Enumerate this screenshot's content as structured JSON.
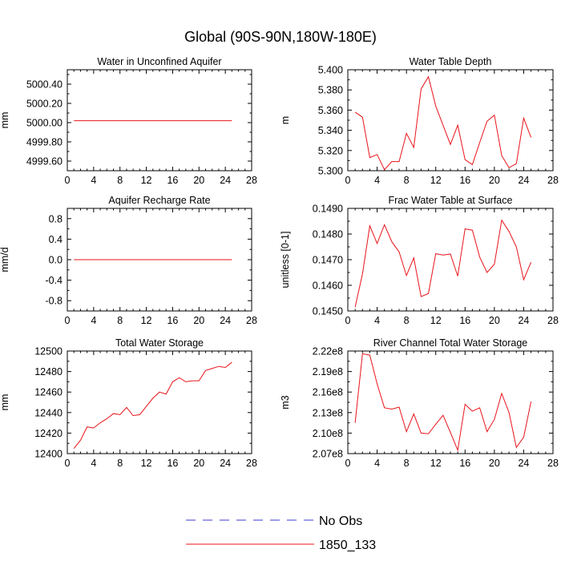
{
  "figure_title": "Global (90S-90N,180W-180E)",
  "legend": {
    "entries": [
      {
        "label": "No Obs",
        "color": "#3b3bd6",
        "dashed": true
      },
      {
        "label": "1850_133",
        "color": "#e8141a",
        "dashed": false
      }
    ]
  },
  "chart_data": [
    {
      "type": "line",
      "title": "Water in Unconfined Aquifer",
      "ylabel": "mm",
      "xlim": [
        0,
        28
      ],
      "ylim": [
        4999.5,
        5000.55
      ],
      "xticks": [
        0,
        4,
        8,
        12,
        16,
        20,
        24,
        28
      ],
      "xtick_labels": [
        "0",
        "4",
        "8",
        "12",
        "16",
        "20",
        "24",
        "28"
      ],
      "yticks": [
        4999.6,
        4999.8,
        5000.0,
        5000.2,
        5000.4
      ],
      "ytick_labels": [
        "4999.60",
        "4999.80",
        "5000.00",
        "5000.20",
        "5000.40"
      ],
      "series": [
        {
          "color": "#e8141a",
          "x": [
            1,
            25
          ],
          "y": [
            5000.02,
            5000.02
          ]
        }
      ]
    },
    {
      "type": "line",
      "title": "Water Table Depth",
      "ylabel": "m",
      "xlim": [
        0,
        28
      ],
      "ylim": [
        5.3,
        5.4
      ],
      "xticks": [
        0,
        4,
        8,
        12,
        16,
        20,
        24,
        28
      ],
      "xtick_labels": [
        "0",
        "4",
        "8",
        "12",
        "16",
        "20",
        "24",
        "28"
      ],
      "yticks": [
        5.3,
        5.32,
        5.34,
        5.36,
        5.38,
        5.4
      ],
      "ytick_labels": [
        "5.300",
        "5.320",
        "5.340",
        "5.360",
        "5.380",
        "5.400"
      ],
      "series": [
        {
          "color": "#e8141a",
          "x": [
            1,
            2,
            3,
            4,
            5,
            6,
            7,
            8,
            9,
            10,
            11,
            12,
            13,
            14,
            15,
            16,
            17,
            18,
            19,
            20,
            21,
            22,
            23,
            24,
            25
          ],
          "y": [
            5.358,
            5.353,
            5.313,
            5.316,
            5.301,
            5.309,
            5.309,
            5.337,
            5.323,
            5.381,
            5.393,
            5.364,
            5.345,
            5.326,
            5.345,
            5.311,
            5.306,
            5.328,
            5.349,
            5.355,
            5.315,
            5.303,
            5.307,
            5.352,
            5.333
          ]
        }
      ]
    },
    {
      "type": "line",
      "title": "Aquifer Recharge Rate",
      "ylabel": "mm/d",
      "xlim": [
        0,
        28
      ],
      "ylim": [
        -1.0,
        1.0
      ],
      "xticks": [
        0,
        4,
        8,
        12,
        16,
        20,
        24,
        28
      ],
      "xtick_labels": [
        "0",
        "4",
        "8",
        "12",
        "16",
        "20",
        "24",
        "28"
      ],
      "yticks": [
        -0.8,
        -0.4,
        0.0,
        0.4,
        0.8
      ],
      "ytick_labels": [
        "-0.8",
        "-0.4",
        "0.0",
        "0.4",
        "0.8"
      ],
      "series": [
        {
          "color": "#e8141a",
          "x": [
            1,
            25
          ],
          "y": [
            0.0,
            0.0
          ]
        }
      ]
    },
    {
      "type": "line",
      "title": "Frac Water Table at Surface",
      "ylabel": "unitless [0-1]",
      "xlim": [
        0,
        28
      ],
      "ylim": [
        0.145,
        0.149
      ],
      "xticks": [
        0,
        4,
        8,
        12,
        16,
        20,
        24,
        28
      ],
      "xtick_labels": [
        "0",
        "4",
        "8",
        "12",
        "16",
        "20",
        "24",
        "28"
      ],
      "yticks": [
        0.145,
        0.146,
        0.147,
        0.148,
        0.149
      ],
      "ytick_labels": [
        "0.1450",
        "0.1460",
        "0.1470",
        "0.1480",
        "0.1490"
      ],
      "series": [
        {
          "color": "#e8141a",
          "x": [
            1,
            2,
            3,
            4,
            5,
            6,
            7,
            8,
            9,
            10,
            11,
            12,
            13,
            14,
            15,
            16,
            17,
            18,
            19,
            20,
            21,
            22,
            23,
            24,
            25
          ],
          "y": [
            0.14515,
            0.14645,
            0.14832,
            0.14763,
            0.14836,
            0.1477,
            0.1473,
            0.14638,
            0.14707,
            0.14556,
            0.14568,
            0.14723,
            0.14718,
            0.14722,
            0.14636,
            0.1482,
            0.14815,
            0.1471,
            0.1465,
            0.14682,
            0.14854,
            0.1481,
            0.1475,
            0.14622,
            0.1469
          ]
        }
      ]
    },
    {
      "type": "line",
      "title": "Total Water Storage",
      "ylabel": "mm",
      "xlim": [
        0,
        28
      ],
      "ylim": [
        12400,
        12500
      ],
      "xticks": [
        0,
        4,
        8,
        12,
        16,
        20,
        24,
        28
      ],
      "xtick_labels": [
        "0",
        "4",
        "8",
        "12",
        "16",
        "20",
        "24",
        "28"
      ],
      "yticks": [
        12400,
        12420,
        12440,
        12460,
        12480,
        12500
      ],
      "ytick_labels": [
        "12400",
        "12420",
        "12440",
        "12460",
        "12480",
        "12500"
      ],
      "series": [
        {
          "color": "#e8141a",
          "x": [
            1,
            2,
            3,
            4,
            5,
            6,
            7,
            8,
            9,
            10,
            11,
            12,
            13,
            14,
            15,
            16,
            17,
            18,
            19,
            20,
            21,
            22,
            23,
            24,
            25
          ],
          "y": [
            12405,
            12413,
            12426,
            12425,
            12430,
            12434,
            12439,
            12438,
            12445,
            12437,
            12438,
            12446,
            12454,
            12460,
            12458,
            12470,
            12474,
            12470,
            12471,
            12471,
            12481,
            12483,
            12485,
            12484,
            12489
          ]
        }
      ]
    },
    {
      "type": "line",
      "title": "River Channel Total Water Storage",
      "ylabel": "m3",
      "xlim": [
        0,
        28
      ],
      "ylim": [
        207000000.0,
        222000000.0
      ],
      "xticks": [
        0,
        4,
        8,
        12,
        16,
        20,
        24,
        28
      ],
      "xtick_labels": [
        "0",
        "4",
        "8",
        "12",
        "16",
        "20",
        "24",
        "28"
      ],
      "yticks": [
        207000000.0,
        210000000.0,
        213000000.0,
        216000000.0,
        219000000.0,
        222000000.0
      ],
      "ytick_labels": [
        "2.07e8",
        "2.10e8",
        "2.13e8",
        "2.16e8",
        "2.19e8",
        "2.22e8"
      ],
      "series": [
        {
          "color": "#e8141a",
          "x": [
            1,
            2,
            3,
            4,
            5,
            6,
            7,
            8,
            9,
            10,
            11,
            12,
            13,
            14,
            15,
            16,
            17,
            18,
            19,
            20,
            21,
            22,
            23,
            24,
            25
          ],
          "y": [
            211500000.0,
            221600000.0,
            221400000.0,
            217200000.0,
            213700000.0,
            213500000.0,
            213800000.0,
            210200000.0,
            212800000.0,
            210000000.0,
            209900000.0,
            211300000.0,
            212600000.0,
            210100000.0,
            207500000.0,
            214200000.0,
            213200000.0,
            213700000.0,
            210200000.0,
            212000000.0,
            215800000.0,
            213000000.0,
            207900000.0,
            209400000.0,
            214600000.0
          ]
        }
      ]
    }
  ]
}
